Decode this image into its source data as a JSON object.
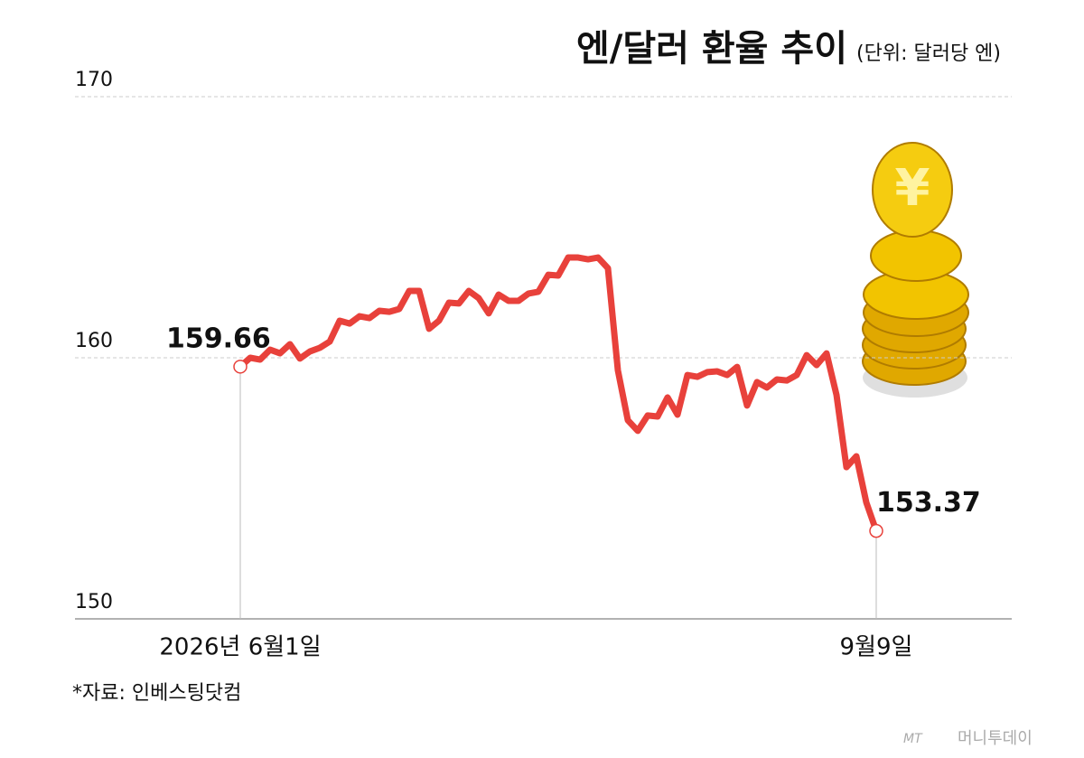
{
  "chart_data": {
    "type": "line",
    "title": "엔/달러 환율 추이",
    "subtitle": "(단위: 달러당 엔)",
    "source": "*자료: 인베스팅닷컴",
    "watermark": [
      "MT",
      "머니투데이"
    ],
    "categories": [
      "2026년 6월1일",
      null,
      null,
      null,
      null,
      null,
      null,
      null,
      null,
      null,
      null,
      null,
      null,
      null,
      null,
      null,
      null,
      null,
      null,
      null,
      null,
      null,
      null,
      null,
      null,
      null,
      null,
      null,
      null,
      null,
      null,
      null,
      null,
      null,
      null,
      null,
      null,
      null,
      null,
      null,
      null,
      null,
      null,
      null,
      null,
      null,
      null,
      null,
      null,
      null,
      null,
      null,
      null,
      null,
      null,
      null,
      null,
      null,
      null,
      null,
      null,
      null,
      null,
      null,
      "9월9일"
    ],
    "values": [
      159.66,
      160.0,
      159.93,
      160.31,
      160.17,
      160.52,
      159.97,
      160.24,
      160.38,
      160.62,
      161.42,
      161.31,
      161.59,
      161.52,
      161.8,
      161.76,
      161.87,
      162.56,
      162.56,
      161.11,
      161.42,
      162.11,
      162.08,
      162.56,
      162.28,
      161.7,
      162.42,
      162.18,
      162.18,
      162.46,
      162.53,
      163.18,
      163.15,
      163.84,
      163.84,
      163.77,
      163.84,
      163.43,
      159.52,
      157.61,
      157.2,
      157.79,
      157.75,
      158.48,
      157.82,
      159.34,
      159.27,
      159.45,
      159.48,
      159.34,
      159.65,
      158.17,
      159.07,
      158.86,
      159.17,
      159.13,
      159.34,
      160.1,
      159.72,
      160.17,
      158.58,
      155.81,
      156.23,
      154.46,
      153.37
    ],
    "color": "#e8413b",
    "ylim": [
      150,
      170
    ],
    "yticks": [
      150,
      160,
      170
    ],
    "grid": true
  }
}
